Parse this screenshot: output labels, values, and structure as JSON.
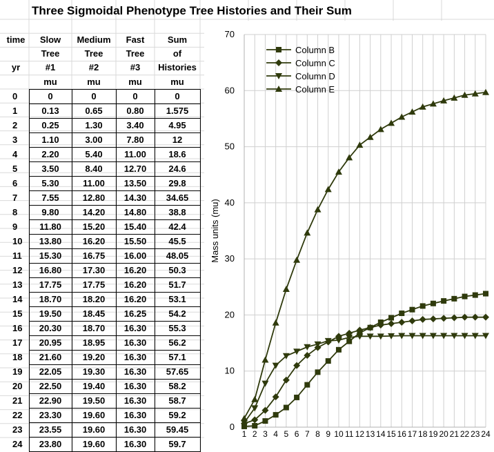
{
  "title": "Three Sigmoidal Phenotype Tree Histories and Their Sum",
  "table": {
    "headers": [
      [
        "time",
        "Slow",
        "Medium",
        "Fast",
        "Sum"
      ],
      [
        "",
        "Tree",
        "Tree",
        "Tree",
        "of"
      ],
      [
        "yr",
        "#1",
        "#2",
        "#3",
        "Histories"
      ],
      [
        "",
        "mu",
        "mu",
        "mu",
        "mu"
      ]
    ],
    "rows": [
      [
        "0",
        "0",
        "0",
        "0",
        "0"
      ],
      [
        "1",
        "0.13",
        "0.65",
        "0.80",
        "1.575"
      ],
      [
        "2",
        "0.25",
        "1.30",
        "3.40",
        "4.95"
      ],
      [
        "3",
        "1.10",
        "3.00",
        "7.80",
        "12"
      ],
      [
        "4",
        "2.20",
        "5.40",
        "11.00",
        "18.6"
      ],
      [
        "5",
        "3.50",
        "8.40",
        "12.70",
        "24.6"
      ],
      [
        "6",
        "5.30",
        "11.00",
        "13.50",
        "29.8"
      ],
      [
        "7",
        "7.55",
        "12.80",
        "14.30",
        "34.65"
      ],
      [
        "8",
        "9.80",
        "14.20",
        "14.80",
        "38.8"
      ],
      [
        "9",
        "11.80",
        "15.20",
        "15.40",
        "42.4"
      ],
      [
        "10",
        "13.80",
        "16.20",
        "15.50",
        "45.5"
      ],
      [
        "11",
        "15.30",
        "16.75",
        "16.00",
        "48.05"
      ],
      [
        "12",
        "16.80",
        "17.30",
        "16.20",
        "50.3"
      ],
      [
        "13",
        "17.75",
        "17.75",
        "16.20",
        "51.7"
      ],
      [
        "14",
        "18.70",
        "18.20",
        "16.20",
        "53.1"
      ],
      [
        "15",
        "19.50",
        "18.45",
        "16.25",
        "54.2"
      ],
      [
        "16",
        "20.30",
        "18.70",
        "16.30",
        "55.3"
      ],
      [
        "17",
        "20.95",
        "18.95",
        "16.30",
        "56.2"
      ],
      [
        "18",
        "21.60",
        "19.20",
        "16.30",
        "57.1"
      ],
      [
        "19",
        "22.05",
        "19.30",
        "16.30",
        "57.65"
      ],
      [
        "20",
        "22.50",
        "19.40",
        "16.30",
        "58.2"
      ],
      [
        "21",
        "22.90",
        "19.50",
        "16.30",
        "58.7"
      ],
      [
        "22",
        "23.30",
        "19.60",
        "16.30",
        "59.2"
      ],
      [
        "23",
        "23.55",
        "19.60",
        "16.30",
        "59.45"
      ],
      [
        "24",
        "23.80",
        "19.60",
        "16.30",
        "59.7"
      ]
    ]
  },
  "chart_data": {
    "type": "line",
    "title": "",
    "xlabel": "",
    "ylabel": "Mass  units  (mu)",
    "x": [
      1,
      2,
      3,
      4,
      5,
      6,
      7,
      8,
      9,
      10,
      11,
      12,
      13,
      14,
      15,
      16,
      17,
      18,
      19,
      20,
      21,
      22,
      23,
      24
    ],
    "ylim": [
      0,
      70
    ],
    "yticks": [
      0,
      10,
      20,
      30,
      40,
      50,
      60,
      70
    ],
    "grid": true,
    "legend_position": "top-left",
    "line_color": "#2f3a0c",
    "series": [
      {
        "name": "Column B",
        "marker": "square",
        "values": [
          0.13,
          0.25,
          1.1,
          2.2,
          3.5,
          5.3,
          7.55,
          9.8,
          11.8,
          13.8,
          15.3,
          16.8,
          17.75,
          18.7,
          19.5,
          20.3,
          20.95,
          21.6,
          22.05,
          22.5,
          22.9,
          23.3,
          23.55,
          23.8
        ]
      },
      {
        "name": "Column C",
        "marker": "diamond",
        "values": [
          0.65,
          1.3,
          3.0,
          5.4,
          8.4,
          11.0,
          12.8,
          14.2,
          15.2,
          16.2,
          16.75,
          17.3,
          17.75,
          18.2,
          18.45,
          18.7,
          18.95,
          19.2,
          19.3,
          19.4,
          19.5,
          19.6,
          19.6,
          19.6
        ]
      },
      {
        "name": "Column D",
        "marker": "triangle-down",
        "values": [
          0.8,
          3.4,
          7.8,
          11.0,
          12.7,
          13.5,
          14.3,
          14.8,
          15.4,
          15.5,
          16.0,
          16.2,
          16.2,
          16.2,
          16.25,
          16.3,
          16.3,
          16.3,
          16.3,
          16.3,
          16.3,
          16.3,
          16.3,
          16.3
        ]
      },
      {
        "name": "Column E",
        "marker": "triangle-up",
        "values": [
          1.575,
          4.95,
          12,
          18.6,
          24.6,
          29.8,
          34.65,
          38.8,
          42.4,
          45.5,
          48.05,
          50.3,
          51.7,
          53.1,
          54.2,
          55.3,
          56.2,
          57.1,
          57.65,
          58.2,
          58.7,
          59.2,
          59.45,
          59.7
        ]
      }
    ]
  }
}
